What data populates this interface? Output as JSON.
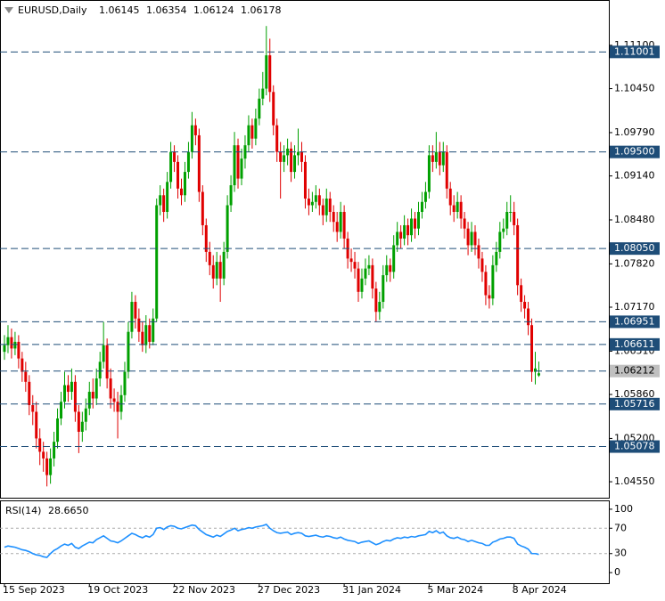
{
  "chart_data": [
    {
      "type": "candlestick",
      "title": "EURUSD,Daily",
      "categories": [
        "15 Sep 2023",
        null,
        null,
        null,
        null,
        null,
        null,
        null,
        null,
        null,
        null,
        null,
        null,
        null,
        null,
        null,
        null,
        null,
        null,
        null,
        null,
        null,
        null,
        null,
        "19 Oct 2023",
        null,
        null,
        null,
        null,
        null,
        null,
        null,
        null,
        null,
        null,
        null,
        null,
        null,
        null,
        null,
        null,
        null,
        null,
        null,
        null,
        null,
        null,
        null,
        "22 Nov 2023",
        null,
        null,
        null,
        null,
        null,
        null,
        null,
        null,
        null,
        null,
        null,
        null,
        null,
        null,
        null,
        null,
        null,
        null,
        null,
        null,
        null,
        null,
        null,
        "27 Dec 2023",
        null,
        null,
        null,
        null,
        null,
        null,
        null,
        null,
        null,
        null,
        null,
        null,
        null,
        null,
        null,
        null,
        null,
        null,
        null,
        null,
        null,
        null,
        null,
        "31 Jan 2024",
        null,
        null,
        null,
        null,
        null,
        null,
        null,
        null,
        null,
        null,
        null,
        null,
        null,
        null,
        null,
        null,
        null,
        null,
        null,
        null,
        null,
        null,
        null,
        "5 Mar 2024",
        null,
        null,
        null,
        null,
        null,
        null,
        null,
        null,
        null,
        null,
        null,
        null,
        null,
        null,
        null,
        null,
        null,
        null,
        null,
        null,
        null,
        null,
        null,
        "8 Apr 2024",
        null,
        null,
        null,
        null,
        null,
        null,
        null
      ],
      "open": [
        1.065,
        1.066,
        1.0672,
        1.0655,
        1.0665,
        1.064,
        1.062,
        1.0605,
        1.057,
        1.056,
        1.052,
        1.05,
        1.049,
        1.0465,
        1.049,
        1.0515,
        1.055,
        1.0575,
        1.06,
        1.059,
        1.0605,
        1.056,
        1.053,
        1.0545,
        1.0565,
        1.059,
        1.058,
        1.061,
        1.0635,
        1.066,
        1.061,
        1.058,
        1.0575,
        1.056,
        1.0585,
        1.062,
        1.068,
        1.0725,
        1.07,
        1.068,
        1.066,
        1.069,
        1.0665,
        1.07,
        1.087,
        1.0885,
        1.086,
        1.0905,
        1.095,
        1.0935,
        1.0895,
        1.0885,
        1.092,
        1.095,
        1.099,
        1.0975,
        1.089,
        1.084,
        1.08,
        1.078,
        1.076,
        1.0785,
        1.076,
        1.08,
        1.087,
        1.09,
        1.096,
        1.091,
        1.094,
        1.096,
        1.099,
        1.097,
        1.1,
        1.103,
        1.1045,
        1.1095,
        1.104,
        1.099,
        1.095,
        1.0935,
        1.0945,
        1.0955,
        1.092,
        1.0945,
        1.095,
        1.0935,
        1.088,
        1.087,
        1.0875,
        1.0885,
        1.087,
        1.0855,
        1.088,
        1.086,
        1.0845,
        1.083,
        1.086,
        1.082,
        1.079,
        1.0785,
        1.0775,
        1.074,
        1.076,
        1.0775,
        1.078,
        1.0745,
        1.071,
        1.0725,
        1.0765,
        1.078,
        1.077,
        1.081,
        1.083,
        1.082,
        1.084,
        1.0825,
        1.085,
        1.0835,
        1.086,
        1.0875,
        1.089,
        1.0945,
        1.0935,
        1.095,
        1.093,
        1.095,
        1.0895,
        1.087,
        1.086,
        1.0875,
        1.085,
        1.0835,
        1.081,
        1.083,
        1.081,
        1.079,
        1.077,
        1.0735,
        1.073,
        1.078,
        1.08,
        1.083,
        1.0835,
        1.086,
        1.086,
        1.084,
        1.075,
        1.0725,
        1.0715,
        1.069,
        1.062,
        1.06145
      ],
      "high": [
        1.0675,
        1.069,
        1.0685,
        1.068,
        1.0675,
        1.065,
        1.0635,
        1.0615,
        1.0585,
        1.0575,
        1.0535,
        1.0515,
        1.05,
        1.0505,
        1.053,
        1.0565,
        1.059,
        1.062,
        1.0615,
        1.0625,
        1.0615,
        1.057,
        1.056,
        1.058,
        1.0605,
        1.061,
        1.0625,
        1.065,
        1.0695,
        1.067,
        1.0625,
        1.0595,
        1.059,
        1.06,
        1.0635,
        1.0695,
        1.074,
        1.0735,
        1.0715,
        1.0695,
        1.0705,
        1.07,
        1.0715,
        1.088,
        1.09,
        1.0895,
        1.092,
        1.0965,
        1.096,
        1.0945,
        1.091,
        1.0935,
        1.0965,
        1.101,
        1.1,
        1.0985,
        1.09,
        1.085,
        1.0815,
        1.0795,
        1.08,
        1.0795,
        1.0815,
        1.0885,
        1.0915,
        1.098,
        1.097,
        1.0955,
        1.0975,
        1.1005,
        1.1,
        1.1015,
        1.1045,
        1.107,
        1.1139,
        1.112,
        1.105,
        1.1,
        1.0965,
        1.096,
        1.097,
        1.0965,
        1.096,
        1.0985,
        1.0965,
        1.0945,
        1.0895,
        1.089,
        1.09,
        1.0895,
        1.088,
        1.0895,
        1.089,
        1.087,
        1.086,
        1.0875,
        1.087,
        1.083,
        1.0805,
        1.08,
        1.0785,
        1.0775,
        1.079,
        1.0795,
        1.079,
        1.0755,
        1.074,
        1.078,
        1.0795,
        1.079,
        1.0825,
        1.0845,
        1.084,
        1.0855,
        1.085,
        1.0865,
        1.086,
        1.0875,
        1.089,
        1.0905,
        1.096,
        1.096,
        1.098,
        1.0965,
        1.0965,
        1.096,
        1.0905,
        1.0885,
        1.089,
        1.0885,
        1.086,
        1.0845,
        1.0845,
        1.084,
        1.082,
        1.08,
        1.078,
        1.075,
        1.0795,
        1.0815,
        1.0845,
        1.085,
        1.0875,
        1.0885,
        1.0875,
        1.085,
        1.076,
        1.0735,
        1.0725,
        1.07,
        1.065,
        1.06354
      ],
      "low": [
        1.0638,
        1.0648,
        1.064,
        1.0645,
        1.0625,
        1.0605,
        1.059,
        1.0555,
        1.054,
        1.0505,
        1.048,
        1.047,
        1.0448,
        1.0452,
        1.0478,
        1.0505,
        1.054,
        1.0565,
        1.0575,
        1.0578,
        1.0545,
        1.0498,
        1.0515,
        1.0532,
        1.0555,
        1.0565,
        1.057,
        1.0598,
        1.0625,
        1.0595,
        1.0565,
        1.056,
        1.052,
        1.0548,
        1.0575,
        1.061,
        1.067,
        1.0685,
        1.0665,
        1.065,
        1.0648,
        1.0655,
        1.066,
        1.0695,
        1.0855,
        1.0845,
        1.085,
        1.0895,
        1.092,
        1.088,
        1.087,
        1.0875,
        1.091,
        1.094,
        1.096,
        1.0875,
        1.0825,
        1.0785,
        1.0765,
        1.0745,
        1.075,
        1.0725,
        1.075,
        1.079,
        1.086,
        1.089,
        1.0895,
        1.09,
        1.0925,
        1.095,
        1.0955,
        1.096,
        1.099,
        1.102,
        1.1035,
        1.1025,
        1.0975,
        1.0935,
        1.088,
        1.092,
        1.093,
        1.0905,
        1.091,
        1.093,
        1.092,
        1.0865,
        1.0855,
        1.086,
        1.0865,
        1.0855,
        1.084,
        1.0845,
        1.0845,
        1.083,
        1.0815,
        1.082,
        1.0805,
        1.0775,
        1.077,
        1.076,
        1.0725,
        1.073,
        1.075,
        1.0765,
        1.073,
        1.0695,
        1.0698,
        1.0715,
        1.0755,
        1.0755,
        1.076,
        1.08,
        1.0805,
        1.081,
        1.081,
        1.0815,
        1.082,
        1.0825,
        1.085,
        1.0865,
        1.088,
        1.092,
        1.0925,
        1.0915,
        1.092,
        1.088,
        1.0855,
        1.0845,
        1.085,
        1.0835,
        1.082,
        1.0795,
        1.08,
        1.0795,
        1.0775,
        1.0755,
        1.072,
        1.0715,
        1.072,
        1.077,
        1.079,
        1.082,
        1.0825,
        1.0845,
        1.0825,
        1.0735,
        1.071,
        1.07,
        1.0675,
        1.0605,
        1.0601,
        1.06124
      ],
      "close": [
        1.066,
        1.0672,
        1.0655,
        1.0665,
        1.064,
        1.062,
        1.0605,
        1.057,
        1.056,
        1.052,
        1.05,
        1.049,
        1.0465,
        1.049,
        1.0515,
        1.055,
        1.0575,
        1.06,
        1.059,
        1.0605,
        1.056,
        1.053,
        1.0545,
        1.0565,
        1.059,
        1.058,
        1.061,
        1.0635,
        1.066,
        1.061,
        1.058,
        1.0575,
        1.056,
        1.0585,
        1.062,
        1.068,
        1.0725,
        1.07,
        1.068,
        1.066,
        1.069,
        1.0665,
        1.07,
        1.087,
        1.0885,
        1.086,
        1.0905,
        1.095,
        1.0935,
        1.0895,
        1.0885,
        1.092,
        1.095,
        1.099,
        1.0975,
        1.089,
        1.084,
        1.08,
        1.078,
        1.076,
        1.0785,
        1.076,
        1.08,
        1.087,
        1.09,
        1.096,
        1.091,
        1.094,
        1.096,
        1.099,
        1.097,
        1.1,
        1.103,
        1.1045,
        1.1095,
        1.104,
        1.099,
        1.095,
        1.0935,
        1.0945,
        1.0955,
        1.092,
        1.0945,
        1.095,
        1.0935,
        1.088,
        1.087,
        1.0875,
        1.0885,
        1.087,
        1.0855,
        1.088,
        1.086,
        1.0845,
        1.083,
        1.086,
        1.082,
        1.079,
        1.0785,
        1.0775,
        1.074,
        1.076,
        1.0775,
        1.078,
        1.0745,
        1.071,
        1.0725,
        1.0765,
        1.078,
        1.077,
        1.081,
        1.083,
        1.082,
        1.084,
        1.0825,
        1.085,
        1.0835,
        1.086,
        1.0875,
        1.089,
        1.0945,
        1.0935,
        1.095,
        1.093,
        1.095,
        1.0895,
        1.087,
        1.086,
        1.0875,
        1.085,
        1.0835,
        1.081,
        1.083,
        1.081,
        1.079,
        1.077,
        1.0735,
        1.073,
        1.078,
        1.08,
        1.083,
        1.0835,
        1.086,
        1.086,
        1.084,
        1.075,
        1.0725,
        1.0715,
        1.069,
        1.062,
        1.0625,
        1.06178
      ],
      "up_color": "#00a000",
      "down_color": "#e00000",
      "ylim": [
        1.04297,
        1.11767
      ],
      "yticks": [
        {
          "value": 1.111,
          "label": "1.11100"
        },
        {
          "value": 1.1045,
          "label": "1.10450"
        },
        {
          "value": 1.0979,
          "label": "1.09790"
        },
        {
          "value": 1.0914,
          "label": "1.09140"
        },
        {
          "value": 1.0848,
          "label": "1.08480"
        },
        {
          "value": 1.0782,
          "label": "1.07820"
        },
        {
          "value": 1.0717,
          "label": "1.07170"
        },
        {
          "value": 1.0651,
          "label": "1.06510"
        },
        {
          "value": 1.0586,
          "label": "1.05860"
        },
        {
          "value": 1.052,
          "label": "1.05200"
        },
        {
          "value": 1.0455,
          "label": "1.04550"
        }
      ],
      "levels": [
        1.11001,
        {
          "value": 1.095,
          "label": "1.09500"
        },
        {
          "value": 1.0805,
          "label": "1.08050"
        },
        1.06951,
        1.06611,
        1.05716,
        1.05078
      ],
      "level_color": "#1e4d78",
      "bid": 1.06212,
      "bid_color": "#c0c0c0"
    },
    {
      "type": "line",
      "title": "RSI(14)",
      "color": "#1e90ff",
      "values": [
        40,
        42,
        41,
        40,
        38,
        36,
        35,
        33,
        30,
        28,
        27,
        25,
        24,
        30,
        35,
        38,
        42,
        45,
        43,
        46,
        40,
        38,
        42,
        45,
        48,
        47,
        52,
        55,
        58,
        54,
        50,
        49,
        47,
        50,
        54,
        58,
        62,
        60,
        57,
        55,
        58,
        56,
        60,
        70,
        71,
        68,
        72,
        74,
        73,
        70,
        69,
        71,
        73,
        75,
        74,
        68,
        64,
        60,
        58,
        56,
        59,
        57,
        61,
        65,
        67,
        70,
        66,
        68,
        69,
        71,
        70,
        72,
        73,
        74,
        76,
        70,
        66,
        63,
        62,
        63,
        64,
        60,
        62,
        63,
        62,
        58,
        57,
        58,
        59,
        57,
        56,
        58,
        57,
        55,
        54,
        56,
        53,
        51,
        50,
        49,
        46,
        48,
        49,
        50,
        47,
        44,
        46,
        49,
        51,
        50,
        53,
        55,
        54,
        56,
        55,
        57,
        56,
        58,
        59,
        60,
        65,
        63,
        66,
        62,
        64,
        58,
        55,
        54,
        56,
        53,
        52,
        49,
        51,
        49,
        47,
        46,
        43,
        43,
        48,
        50,
        53,
        54,
        56,
        56,
        54,
        45,
        42,
        40,
        37,
        30,
        30,
        28.665
      ],
      "last_value_label": "28.6650",
      "ylim": [
        -16.7,
        112.5
      ],
      "yticks": [
        100,
        70,
        30,
        0
      ],
      "levels": [
        70,
        30
      ]
    }
  ]
}
